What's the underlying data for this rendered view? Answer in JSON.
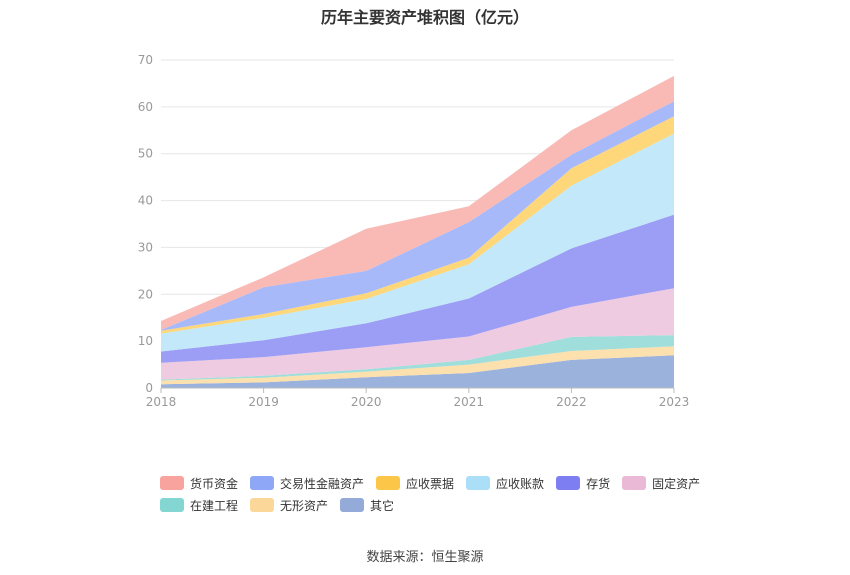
{
  "chart_data": {
    "type": "area",
    "stacked": true,
    "title": "历年主要资产堆积图（亿元）",
    "x": [
      "2018",
      "2019",
      "2020",
      "2021",
      "2022",
      "2023"
    ],
    "ylim": [
      0,
      70
    ],
    "yticks": [
      0,
      10,
      20,
      30,
      40,
      50,
      60,
      70
    ],
    "grid": true,
    "legend_position": "bottom",
    "series": [
      {
        "name": "其它",
        "color": "#9bb3dc",
        "values": [
          0.8,
          1.2,
          2.3,
          3.2,
          6.0,
          7.0
        ]
      },
      {
        "name": "无形资产",
        "color": "#fce0ad",
        "values": [
          0.8,
          1.0,
          1.2,
          1.8,
          1.9,
          1.9
        ]
      },
      {
        "name": "在建工程",
        "color": "#a0dedb",
        "values": [
          0.2,
          0.4,
          0.5,
          1.0,
          3.0,
          2.4
        ]
      },
      {
        "name": "固定资产",
        "color": "#eecbe0",
        "values": [
          3.6,
          4.0,
          4.7,
          5.0,
          6.4,
          10.0
        ]
      },
      {
        "name": "存货",
        "color": "#9c9ef6",
        "values": [
          2.4,
          3.6,
          5.1,
          8.1,
          12.5,
          15.7
        ]
      },
      {
        "name": "应收账款",
        "color": "#c3e8f9",
        "values": [
          3.8,
          4.8,
          5.2,
          7.3,
          13.4,
          17.3
        ]
      },
      {
        "name": "应收票据",
        "color": "#fdd77a",
        "values": [
          0.6,
          0.8,
          1.2,
          1.4,
          3.7,
          3.7
        ]
      },
      {
        "name": "交易性金融资产",
        "color": "#a7b9f9",
        "values": [
          0.2,
          5.7,
          4.8,
          7.6,
          2.9,
          3.2
        ]
      },
      {
        "name": "货币资金",
        "color": "#f9bab6",
        "values": [
          1.9,
          2.1,
          9.0,
          3.4,
          5.2,
          5.4
        ]
      }
    ]
  },
  "legend": {
    "rows": [
      [
        {
          "label": "货币资金",
          "color": "#f8a39d"
        },
        {
          "label": "交易性金融资产",
          "color": "#8ea7f7"
        },
        {
          "label": "应收票据",
          "color": "#fcc748"
        },
        {
          "label": "应收账款",
          "color": "#abdef7"
        },
        {
          "label": "存货",
          "color": "#7c7ef2"
        },
        {
          "label": "固定资产",
          "color": "#e9b9d6"
        }
      ],
      [
        {
          "label": "在建工程",
          "color": "#84d6d3"
        },
        {
          "label": "无形资产",
          "color": "#fcd79a"
        },
        {
          "label": "其它",
          "color": "#94abd9"
        }
      ]
    ]
  },
  "source": "数据来源：恒生聚源"
}
